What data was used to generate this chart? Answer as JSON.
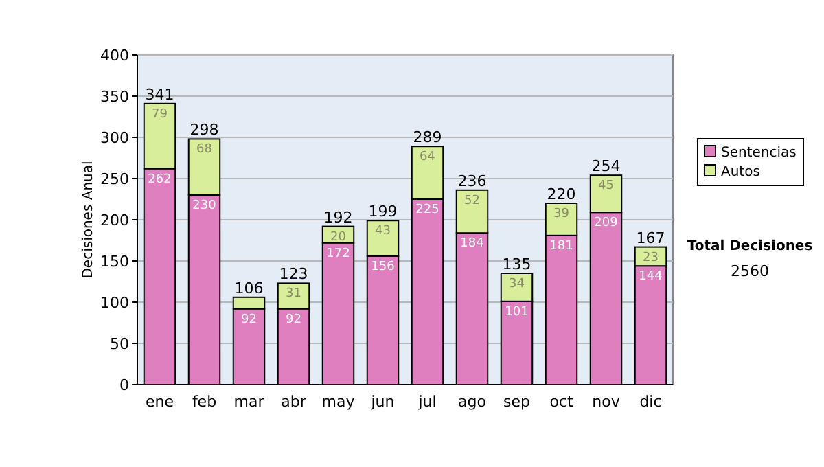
{
  "chart_data": {
    "type": "bar",
    "stacked": true,
    "ylabel": "Decisiones Anual",
    "categories": [
      "ene",
      "feb",
      "mar",
      "abr",
      "may",
      "jun",
      "jul",
      "ago",
      "sep",
      "oct",
      "nov",
      "dic"
    ],
    "series": [
      {
        "name": "Sentencias",
        "color": "#e07fc0",
        "values": [
          262,
          230,
          92,
          92,
          172,
          156,
          225,
          184,
          101,
          181,
          209,
          144
        ],
        "value_labels": [
          "262",
          "230",
          "92",
          "92",
          "172",
          "156",
          "225",
          "184",
          "101",
          "181",
          "209",
          "144"
        ]
      },
      {
        "name": "Autos",
        "color": "#d8ee9a",
        "values": [
          79,
          68,
          14,
          31,
          20,
          43,
          64,
          52,
          34,
          39,
          45,
          23
        ],
        "value_labels": [
          "79",
          "68",
          null,
          "31",
          "20",
          "43",
          "64",
          "52",
          "34",
          "39",
          "45",
          "23"
        ]
      }
    ],
    "totals": [
      "341",
      "298",
      "106",
      "123",
      "192",
      "199",
      "289",
      "236",
      "135",
      "220",
      "254",
      "167"
    ],
    "ylim": [
      0,
      400
    ],
    "yticks": [
      0,
      50,
      100,
      150,
      200,
      250,
      300,
      350,
      400
    ],
    "grid": "y",
    "legend": "right",
    "annotations": [
      "Total Decisiones",
      "2560"
    ]
  }
}
